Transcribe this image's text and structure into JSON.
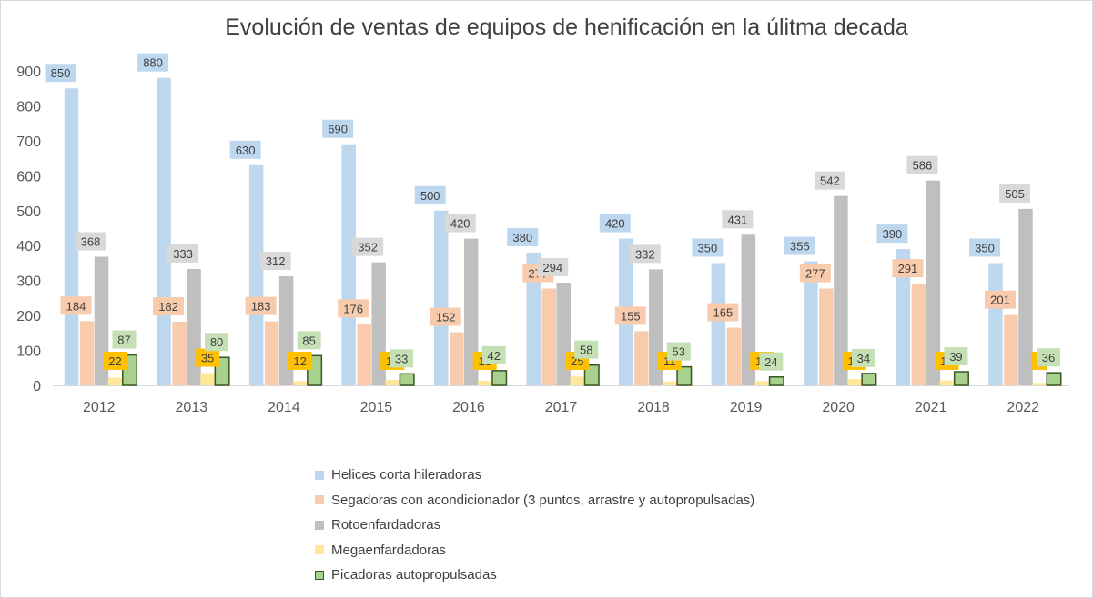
{
  "chart_data": {
    "type": "bar",
    "title": "Evolución de ventas de equipos de henificación en la úlitma decada",
    "categories": [
      "2012",
      "2013",
      "2014",
      "2015",
      "2016",
      "2017",
      "2018",
      "2019",
      "2020",
      "2021",
      "2022"
    ],
    "ylim": [
      0,
      900
    ],
    "yticks": [
      0,
      100,
      200,
      300,
      400,
      500,
      600,
      700,
      800,
      900
    ],
    "grid": false,
    "legend_position": "bottom",
    "series": [
      {
        "name": "Helices corta hileradoras",
        "values": [
          850,
          880,
          630,
          690,
          500,
          380,
          420,
          350,
          355,
          390,
          350
        ],
        "color": "#bdd7ee",
        "label_bg": "#bdd7ee"
      },
      {
        "name": "Segadoras con acondicionador (3 puntos, arrastre y autopropulsadas)",
        "values": [
          184,
          182,
          183,
          176,
          152,
          277,
          155,
          165,
          277,
          291,
          201
        ],
        "color": "#f8cbad",
        "label_bg": "#f8cbad"
      },
      {
        "name": "Rotoenfardadoras",
        "values": [
          368,
          333,
          312,
          352,
          420,
          294,
          332,
          431,
          542,
          586,
          505
        ],
        "color": "#bfbfbf",
        "label_bg": "#d9d9d9"
      },
      {
        "name": "Megaenfardadoras",
        "values": [
          22,
          35,
          12,
          16,
          13,
          25,
          11,
          12,
          18,
          14,
          7
        ],
        "color": "#ffe699",
        "label_bg": "#ffc000"
      },
      {
        "name": "Picadoras autopropulsadas",
        "values": [
          87,
          80,
          85,
          33,
          42,
          58,
          53,
          24,
          34,
          39,
          36
        ],
        "color": "#a9d18e",
        "label_bg": "#c5e0b4",
        "border": "#375623"
      }
    ]
  }
}
